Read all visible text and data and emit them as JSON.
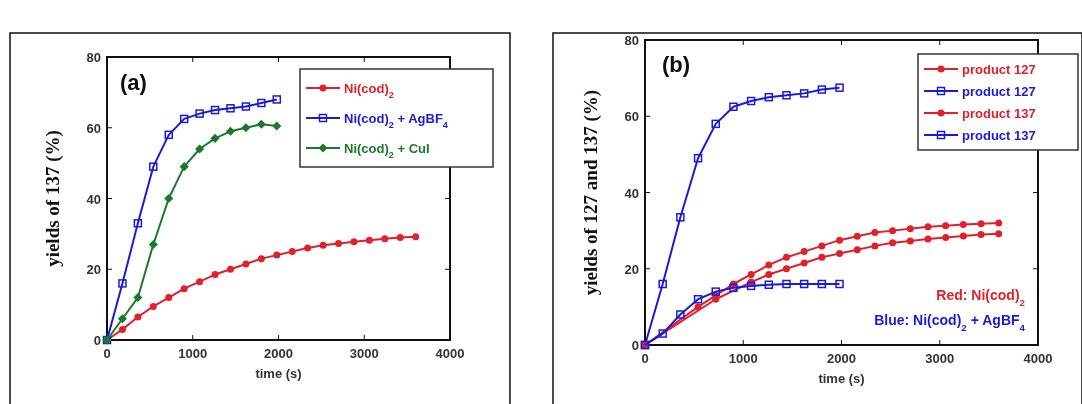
{
  "chart_data": [
    {
      "type": "line",
      "xlabel": "time (s)",
      "ylabel": "yields of 137 (%)",
      "xlim": [
        0,
        4000
      ],
      "ylim": [
        0,
        80
      ],
      "xticks": [
        0,
        1000,
        2000,
        3000,
        4000
      ],
      "yticks": [
        0,
        20,
        40,
        60,
        80
      ],
      "grid": false,
      "legend": "top right",
      "annotations": [
        "(a)"
      ],
      "series": [
        {
          "name": "Ni(cod)$_{2}$",
          "color": "#e0202a",
          "marker": "circle",
          "x": [
            0,
            180,
            360,
            540,
            720,
            900,
            1080,
            1260,
            1440,
            1620,
            1800,
            1980,
            2160,
            2340,
            2520,
            2700,
            2880,
            3060,
            3240,
            3420,
            3600
          ],
          "values": [
            0,
            3,
            6.5,
            9.5,
            12,
            14.5,
            16.5,
            18.5,
            20,
            21.5,
            23,
            24,
            25,
            26,
            26.8,
            27.3,
            27.8,
            28.2,
            28.6,
            29,
            29.2
          ]
        },
        {
          "name": "Ni(cod)$_{2}$ + AgBF$_{4}$",
          "color": "#1a1adc",
          "marker": "square",
          "x": [
            0,
            180,
            360,
            540,
            720,
            900,
            1080,
            1260,
            1440,
            1620,
            1800,
            1980
          ],
          "values": [
            0,
            16,
            33,
            49,
            58,
            62.5,
            64,
            65,
            65.5,
            66,
            67,
            68
          ]
        },
        {
          "name": "Ni(cod)$_{2}$ + CuI",
          "color": "#1a7a2a",
          "marker": "diamond",
          "x": [
            0,
            180,
            360,
            540,
            720,
            900,
            1080,
            1260,
            1440,
            1620,
            1800,
            1980
          ],
          "values": [
            0,
            6,
            12,
            27,
            40,
            49,
            54,
            57,
            59,
            60,
            61,
            60.5
          ]
        }
      ]
    },
    {
      "type": "line",
      "xlabel": "time (s)",
      "ylabel": "yields of 127 and 137 (%)",
      "xlim": [
        0,
        4000
      ],
      "ylim": [
        0,
        80
      ],
      "xticks": [
        0,
        1000,
        2000,
        3000,
        4000
      ],
      "yticks": [
        0,
        20,
        40,
        60,
        80
      ],
      "grid": false,
      "legend": "top right",
      "annotations": [
        "(b)",
        "Red: Ni(cod)$_{2}$",
        "Blue: Ni(cod)$_{2}$ + AgBF$_{4}$"
      ],
      "series": [
        {
          "name": "product 127",
          "color": "#e0202a",
          "marker": "circle",
          "x": [
            0,
            180,
            360,
            540,
            720,
            900,
            1080,
            1260,
            1440,
            1620,
            1800,
            1980,
            2160,
            2340,
            2520,
            2700,
            2880,
            3060,
            3240,
            3420,
            3600
          ],
          "values": [
            0,
            null,
            null,
            null,
            12,
            null,
            16.5,
            18.5,
            20,
            21.5,
            23,
            24,
            25,
            26,
            26.8,
            27.3,
            27.8,
            28.2,
            28.6,
            29,
            29.2
          ]
        },
        {
          "name": "product 127",
          "color": "#1a1adc",
          "marker": "square",
          "x": [
            0,
            180,
            360,
            540,
            720,
            900,
            1080,
            1260,
            1440,
            1620,
            1800,
            1980
          ],
          "values": [
            0,
            16,
            33.5,
            49,
            58,
            62.5,
            64,
            65,
            65.5,
            66,
            67,
            67.5
          ]
        },
        {
          "name": "product 137",
          "color": "#e0202a",
          "marker": "circle",
          "x": [
            0,
            180,
            360,
            540,
            720,
            900,
            1080,
            1260,
            1440,
            1620,
            1800,
            1980,
            2160,
            2340,
            2520,
            2700,
            2880,
            3060,
            3240,
            3420,
            3600
          ],
          "values": [
            0,
            null,
            null,
            10,
            13,
            16,
            18.5,
            21,
            23,
            24.5,
            26,
            27.5,
            28.5,
            29.5,
            30,
            30.5,
            31,
            31.3,
            31.6,
            31.8,
            32
          ]
        },
        {
          "name": "product 137",
          "color": "#1a1adc",
          "marker": "square",
          "x": [
            0,
            180,
            360,
            540,
            720,
            900,
            1080,
            1260,
            1440,
            1620,
            1800,
            1980
          ],
          "values": [
            0,
            3,
            8,
            12,
            14,
            15,
            15.5,
            15.8,
            16,
            16,
            16,
            16
          ]
        }
      ]
    }
  ]
}
